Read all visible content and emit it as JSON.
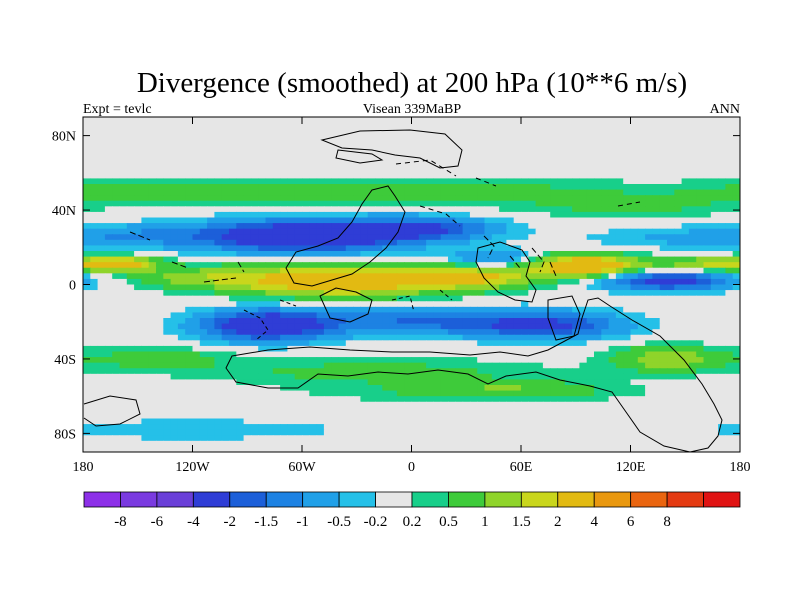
{
  "chart_data": {
    "type": "heatmap",
    "title": "Divergence (smoothed) at 200 hPa (10**6 m/s)",
    "subtitle_left": "Expt = tevlc",
    "subtitle_center": "Visean 339MaBP",
    "subtitle_right": "ANN",
    "x_ticks": [
      {
        "value": -180,
        "label": "180"
      },
      {
        "value": -120,
        "label": "120W"
      },
      {
        "value": -60,
        "label": "60W"
      },
      {
        "value": 0,
        "label": "0"
      },
      {
        "value": 60,
        "label": "60E"
      },
      {
        "value": 120,
        "label": "120E"
      },
      {
        "value": 180,
        "label": "180"
      }
    ],
    "y_ticks": [
      {
        "value": 80,
        "label": "80N"
      },
      {
        "value": 40,
        "label": "40N"
      },
      {
        "value": 0,
        "label": "0"
      },
      {
        "value": -40,
        "label": "40S"
      },
      {
        "value": -80,
        "label": "80S"
      }
    ],
    "xlim": [
      -180,
      180
    ],
    "ylim": [
      -90,
      90
    ],
    "colorbar": {
      "colors": [
        "#8d30e8",
        "#7a3ae0",
        "#6a3fd8",
        "#2f3dd6",
        "#1c5fd9",
        "#1d82e3",
        "#20a0e8",
        "#25c0e8",
        "#e6e6e6",
        "#18cf8a",
        "#3ecb3a",
        "#8fd42a",
        "#c9d61c",
        "#e2ba12",
        "#e9980f",
        "#ea6510",
        "#e43a12",
        "#e01313"
      ],
      "labels": [
        "-8",
        "-6",
        "-4",
        "-2",
        "-1.5",
        "-1",
        "-0.5",
        "-0.2",
        "0.2",
        "0.5",
        "1",
        "1.5",
        "2",
        "4",
        "6",
        "8"
      ]
    },
    "field_features": [
      {
        "lon": -60,
        "lat": 26,
        "value": -3.5,
        "dlon": 55,
        "dlat": 8
      },
      {
        "lon": 5,
        "lat": 30,
        "value": -2.0,
        "dlon": 40,
        "dlat": 6
      },
      {
        "lon": -150,
        "lat": 26,
        "value": -0.8,
        "dlon": 40,
        "dlat": 6
      },
      {
        "lon": 150,
        "lat": 25,
        "value": -0.6,
        "dlon": 50,
        "dlat": 6
      },
      {
        "lon": -80,
        "lat": -22,
        "value": -3.0,
        "dlon": 35,
        "dlat": 8
      },
      {
        "lon": 5,
        "lat": -20,
        "value": -1.5,
        "dlon": 60,
        "dlat": 7
      },
      {
        "lon": 75,
        "lat": -22,
        "value": -2.0,
        "dlon": 40,
        "dlat": 7
      },
      {
        "lon": 140,
        "lat": 2,
        "value": -2.5,
        "dlon": 35,
        "dlat": 5
      },
      {
        "lon": 45,
        "lat": 14,
        "value": -1.2,
        "dlon": 25,
        "dlat": 5
      },
      {
        "lon": -40,
        "lat": 2,
        "value": 3.0,
        "dlon": 60,
        "dlat": 8
      },
      {
        "lon": 35,
        "lat": 4,
        "value": 1.8,
        "dlon": 35,
        "dlat": 6
      },
      {
        "lon": 95,
        "lat": 10,
        "value": 3.0,
        "dlon": 30,
        "dlat": 6
      },
      {
        "lon": -160,
        "lat": 11,
        "value": 2.2,
        "dlon": 20,
        "dlat": 4
      },
      {
        "lon": 165,
        "lat": 11,
        "value": 1.6,
        "dlon": 30,
        "dlat": 4
      },
      {
        "lon": -120,
        "lat": 4,
        "value": 0.9,
        "dlon": 35,
        "dlat": 6
      },
      {
        "lon": 0,
        "lat": 50,
        "value": 0.8,
        "dlon": 120,
        "dlat": 7
      },
      {
        "lon": -150,
        "lat": 50,
        "value": 0.7,
        "dlon": 60,
        "dlat": 6
      },
      {
        "lon": 120,
        "lat": 42,
        "value": 0.6,
        "dlon": 60,
        "dlat": 6
      },
      {
        "lon": -20,
        "lat": -47,
        "value": 0.7,
        "dlon": 90,
        "dlat": 7
      },
      {
        "lon": 140,
        "lat": -40,
        "value": 1.4,
        "dlon": 30,
        "dlat": 7
      },
      {
        "lon": -140,
        "lat": -40,
        "value": 0.8,
        "dlon": 40,
        "dlat": 6
      },
      {
        "lon": 60,
        "lat": -56,
        "value": 0.6,
        "dlon": 50,
        "dlat": 5
      },
      {
        "lon": -120,
        "lat": -78,
        "value": -0.5,
        "dlon": 80,
        "dlat": 5
      },
      {
        "lon": 30,
        "lat": -58,
        "value": 0.5,
        "dlon": 80,
        "dlat": 5
      }
    ]
  }
}
